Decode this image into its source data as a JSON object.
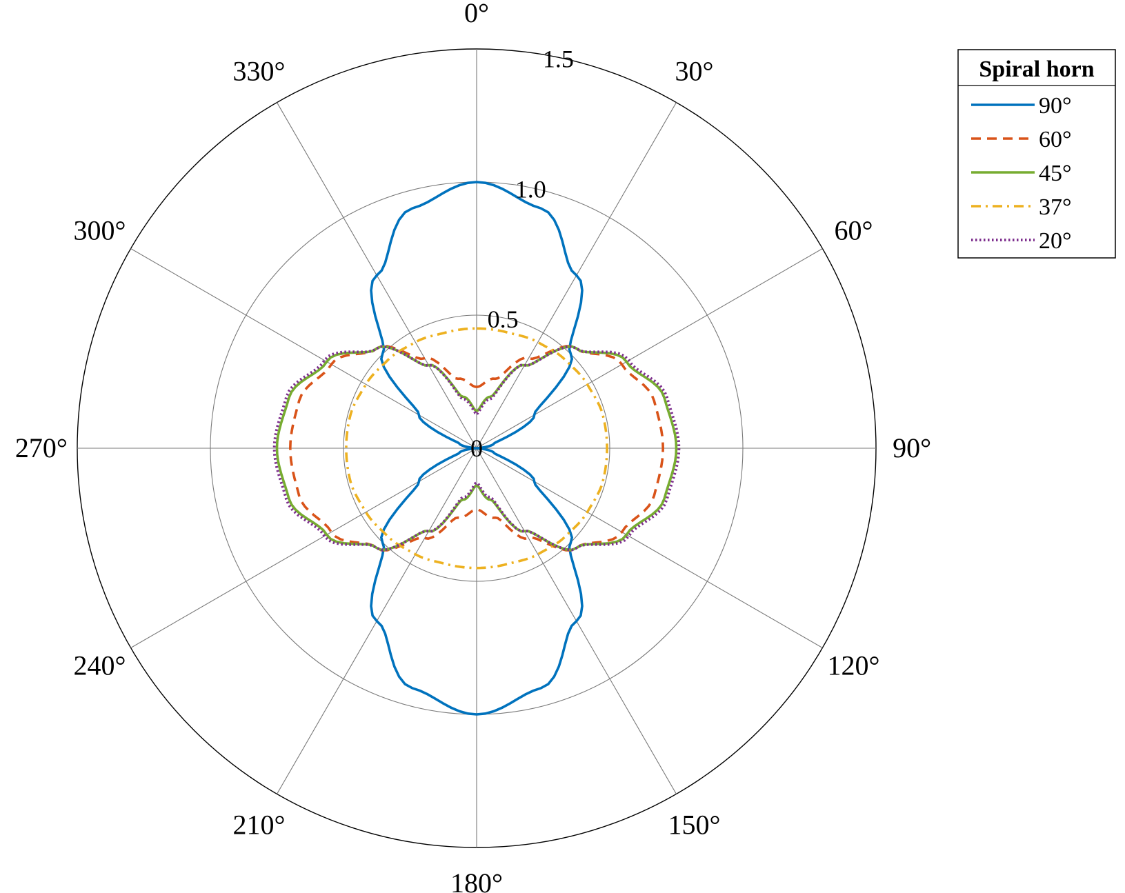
{
  "chart_data": {
    "type": "polar",
    "theta_direction": "clockwise",
    "theta_zero_location": "top",
    "theta_ticks": [
      0,
      30,
      60,
      90,
      120,
      150,
      180,
      210,
      240,
      270,
      300,
      330
    ],
    "theta_tick_labels": [
      "0°",
      "30°",
      "60°",
      "90°",
      "120°",
      "150°",
      "180°",
      "210°",
      "240°",
      "270°",
      "300°",
      "330°"
    ],
    "rlim": [
      0,
      1.5
    ],
    "r_ticks": [
      0,
      0.5,
      1.0,
      1.5
    ],
    "r_tick_labels": [
      "0",
      "0.5",
      "1.0",
      "1.5"
    ],
    "grid": true,
    "legend": {
      "title": "Spiral horn",
      "placement": "top-right",
      "entries": [
        "90°",
        "60°",
        "45°",
        "37°",
        "20°"
      ]
    },
    "series": [
      {
        "name": "90°",
        "color": "#0072BD",
        "line_style": "solid",
        "theta_deg": [
          0,
          15,
          30,
          45,
          60,
          75,
          90,
          105,
          120,
          135,
          150,
          165,
          180,
          195,
          210,
          225,
          240,
          255,
          270,
          285,
          300,
          315,
          330,
          345,
          360
        ],
        "r": [
          1.0,
          0.933,
          0.75,
          0.5,
          0.25,
          0.067,
          0.0,
          0.067,
          0.25,
          0.5,
          0.75,
          0.933,
          1.0,
          0.933,
          0.75,
          0.5,
          0.25,
          0.067,
          0.0,
          0.067,
          0.25,
          0.5,
          0.75,
          0.933,
          1.0
        ]
      },
      {
        "name": "60°",
        "color": "#D95319",
        "line_style": "dashed",
        "theta_deg": [
          0,
          15,
          30,
          45,
          60,
          75,
          90,
          105,
          120,
          135,
          150,
          165,
          180,
          195,
          210,
          225,
          240,
          255,
          270,
          285,
          300,
          315,
          330,
          345,
          360
        ],
        "r": [
          0.23,
          0.27,
          0.39,
          0.53,
          0.63,
          0.69,
          0.7,
          0.69,
          0.63,
          0.53,
          0.39,
          0.27,
          0.23,
          0.27,
          0.39,
          0.53,
          0.63,
          0.69,
          0.7,
          0.69,
          0.63,
          0.53,
          0.39,
          0.27,
          0.23
        ]
      },
      {
        "name": "45°",
        "color": "#77AC30",
        "line_style": "solid",
        "theta_deg": [
          0,
          15,
          30,
          45,
          60,
          75,
          90,
          105,
          120,
          135,
          150,
          165,
          180,
          195,
          210,
          225,
          240,
          255,
          270,
          285,
          300,
          315,
          330,
          345,
          360
        ],
        "r": [
          0.14,
          0.2,
          0.36,
          0.53,
          0.65,
          0.73,
          0.75,
          0.73,
          0.65,
          0.53,
          0.36,
          0.2,
          0.14,
          0.2,
          0.36,
          0.53,
          0.65,
          0.73,
          0.75,
          0.73,
          0.65,
          0.53,
          0.36,
          0.2,
          0.14
        ]
      },
      {
        "name": "37°",
        "color": "#EDB120",
        "line_style": "dashdot",
        "theta_deg": [
          0,
          15,
          30,
          45,
          60,
          75,
          90,
          105,
          120,
          135,
          150,
          165,
          180,
          195,
          210,
          225,
          240,
          255,
          270,
          285,
          300,
          315,
          330,
          345,
          360
        ],
        "r": [
          0.45,
          0.45,
          0.46,
          0.47,
          0.48,
          0.49,
          0.49,
          0.49,
          0.48,
          0.47,
          0.46,
          0.45,
          0.45,
          0.45,
          0.46,
          0.47,
          0.48,
          0.49,
          0.49,
          0.49,
          0.48,
          0.47,
          0.46,
          0.45,
          0.45
        ]
      },
      {
        "name": "20°",
        "color": "#7E2F8E",
        "line_style": "dotted",
        "theta_deg": [
          0,
          15,
          30,
          45,
          60,
          75,
          90,
          105,
          120,
          135,
          150,
          165,
          180,
          195,
          210,
          225,
          240,
          255,
          270,
          285,
          300,
          315,
          330,
          345,
          360
        ],
        "r": [
          0.13,
          0.19,
          0.36,
          0.53,
          0.66,
          0.74,
          0.76,
          0.74,
          0.66,
          0.53,
          0.36,
          0.19,
          0.13,
          0.19,
          0.36,
          0.53,
          0.66,
          0.74,
          0.76,
          0.74,
          0.66,
          0.53,
          0.36,
          0.19,
          0.13
        ]
      }
    ]
  }
}
